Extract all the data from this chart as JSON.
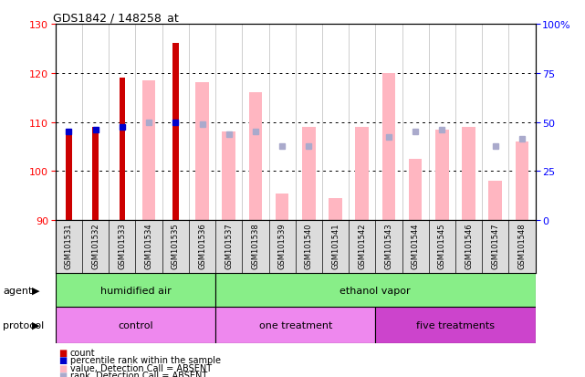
{
  "title": "GDS1842 / 148258_at",
  "samples": [
    "GSM101531",
    "GSM101532",
    "GSM101533",
    "GSM101534",
    "GSM101535",
    "GSM101536",
    "GSM101537",
    "GSM101538",
    "GSM101539",
    "GSM101540",
    "GSM101541",
    "GSM101542",
    "GSM101543",
    "GSM101544",
    "GSM101545",
    "GSM101546",
    "GSM101547",
    "GSM101548"
  ],
  "ylim": [
    90,
    130
  ],
  "yticks": [
    90,
    100,
    110,
    120,
    130
  ],
  "right_ytick_labels": [
    "0",
    "25",
    "50",
    "75",
    "100%"
  ],
  "count_values": [
    108,
    109,
    119,
    null,
    126,
    null,
    null,
    null,
    null,
    null,
    null,
    null,
    null,
    null,
    null,
    null,
    null,
    null
  ],
  "percentile_values": [
    108,
    108.5,
    109,
    null,
    110,
    null,
    null,
    null,
    null,
    null,
    null,
    null,
    null,
    null,
    null,
    null,
    null,
    null
  ],
  "absent_value_bars": [
    null,
    null,
    null,
    118.5,
    null,
    118,
    108,
    116,
    95.5,
    109,
    94.5,
    109,
    120,
    102.5,
    108.5,
    109,
    98,
    106
  ],
  "absent_rank_values": [
    null,
    null,
    null,
    110,
    null,
    109.5,
    107.5,
    108,
    105,
    105,
    null,
    null,
    107,
    108,
    108.5,
    null,
    105,
    106.5
  ],
  "bar_color_dark_red": "#CC0000",
  "bar_color_blue": "#0000CC",
  "bar_color_pink": "#FFB6C1",
  "bar_color_light_blue": "#AAAACC",
  "bg_gray": "#DCDCDC",
  "green_color": "#88EE88",
  "pink_control": "#EE88EE",
  "pink_one": "#EE88EE",
  "purple_five": "#CC44CC",
  "ybase": 90
}
